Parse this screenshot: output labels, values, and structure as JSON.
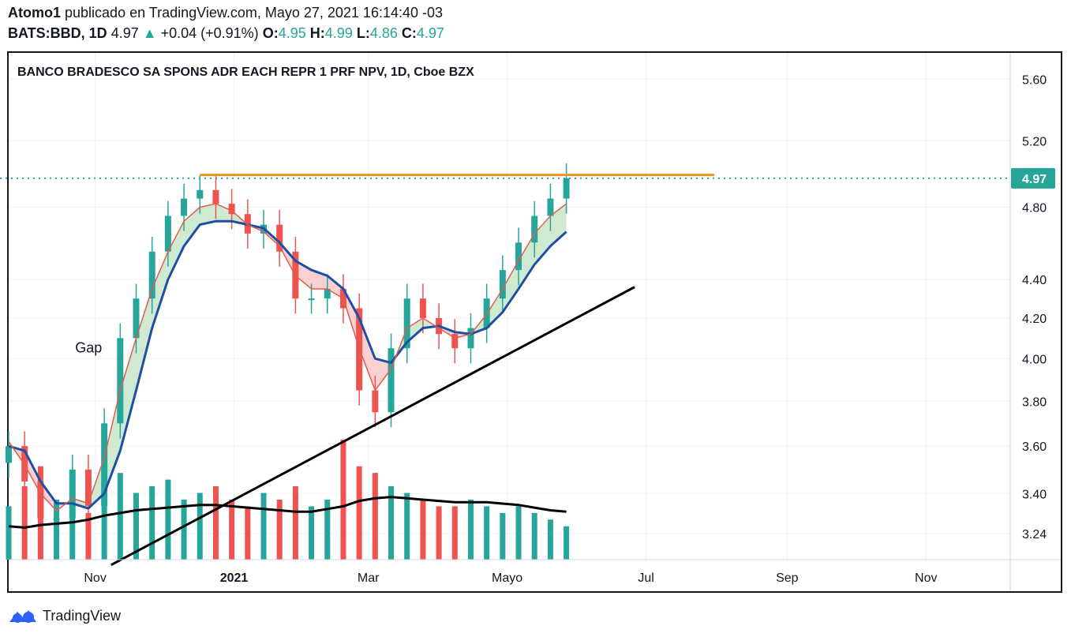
{
  "header": {
    "author": "Atomo1",
    "published_text": "publicado en TradingView.com, Mayo 27, 2021 16:14:40 -03",
    "symbol": "BATS:BBD, 1D",
    "price": "4.97",
    "change_icon": "triangle-up-icon",
    "change_arrow": "▲",
    "change": "+0.04 (+0.91%)",
    "o_label": "O:",
    "o_value": "4.95",
    "h_label": "H:",
    "h_value": "4.99",
    "l_label": "L:",
    "l_value": "4.86",
    "c_label": "C:",
    "c_value": "4.97"
  },
  "footer": {
    "brand": "TradingView",
    "logo_icon": "tradingview-logo-icon"
  },
  "colors": {
    "up": "#26a69a",
    "down": "#ef5350",
    "fast_ma": "#e35b4e",
    "slow_ma": "#1e4fa3",
    "resistance": "#f7931a",
    "trend": "#000000",
    "volume_ma": "#000000",
    "fill_up": "#c8e6c9",
    "fill_down": "#f8c9c9",
    "last_price_line": "#26a69a"
  },
  "chart_data": {
    "type": "candlestick",
    "title": "BANCO BRADESCO SA SPONS ADR EACH REPR 1 PRF NPV, 1D, Cboe BZX",
    "x_axis": {
      "type": "date",
      "range": [
        "2020-09-24",
        "2021-12-08"
      ],
      "ticks": [
        {
          "label": "Nov",
          "date": "2020-11-01",
          "bold": false
        },
        {
          "label": "2021",
          "date": "2021-01-01",
          "bold": true
        },
        {
          "label": "Mar",
          "date": "2021-03-01",
          "bold": false
        },
        {
          "label": "Mayo",
          "date": "2021-05-01",
          "bold": false
        },
        {
          "label": "Jul",
          "date": "2021-07-01",
          "bold": false
        },
        {
          "label": "Sep",
          "date": "2021-09-01",
          "bold": false
        },
        {
          "label": "Nov",
          "date": "2021-11-01",
          "bold": false
        }
      ]
    },
    "y_axis": {
      "scale": "log",
      "range": [
        3.14,
        5.78
      ],
      "ticks": [
        "5.60",
        "5.20",
        "4.80",
        "4.40",
        "4.20",
        "4.00",
        "3.80",
        "3.60",
        "3.40",
        "3.24"
      ]
    },
    "last_price": {
      "value": 4.97,
      "label": "4.97"
    },
    "grid": true,
    "series": [
      {
        "kind": "candles",
        "dates": [
          "2020-09-24",
          "2020-10-01",
          "2020-10-08",
          "2020-10-15",
          "2020-10-22",
          "2020-10-29",
          "2020-11-05",
          "2020-11-12",
          "2020-11-19",
          "2020-11-26",
          "2020-12-03",
          "2020-12-10",
          "2020-12-17",
          "2020-12-24",
          "2020-12-31",
          "2021-01-07",
          "2021-01-14",
          "2021-01-21",
          "2021-01-28",
          "2021-02-04",
          "2021-02-11",
          "2021-02-18",
          "2021-02-25",
          "2021-03-04",
          "2021-03-11",
          "2021-03-18",
          "2021-03-25",
          "2021-04-01",
          "2021-04-08",
          "2021-04-15",
          "2021-04-22",
          "2021-04-29",
          "2021-05-06",
          "2021-05-13",
          "2021-05-20",
          "2021-05-27"
        ],
        "close": [
          3.6,
          3.45,
          3.3,
          3.3,
          3.5,
          3.35,
          3.7,
          4.1,
          4.3,
          4.55,
          4.75,
          4.85,
          4.9,
          4.82,
          4.76,
          4.65,
          4.7,
          4.55,
          4.3,
          4.3,
          4.35,
          4.25,
          3.85,
          3.75,
          4.05,
          4.3,
          4.2,
          4.12,
          4.05,
          4.15,
          4.3,
          4.45,
          4.6,
          4.75,
          4.85,
          4.97
        ]
      },
      {
        "kind": "line",
        "label": "fast MA",
        "values": [
          3.62,
          3.52,
          3.4,
          3.33,
          3.38,
          3.36,
          3.55,
          3.85,
          4.1,
          4.35,
          4.55,
          4.72,
          4.8,
          4.82,
          4.78,
          4.7,
          4.66,
          4.58,
          4.42,
          4.35,
          4.35,
          4.3,
          4.05,
          3.85,
          3.95,
          4.15,
          4.2,
          4.15,
          4.1,
          4.12,
          4.22,
          4.35,
          4.5,
          4.65,
          4.75,
          4.82
        ]
      },
      {
        "kind": "line",
        "label": "slow MA",
        "values": [
          3.6,
          3.58,
          3.45,
          3.36,
          3.36,
          3.34,
          3.4,
          3.58,
          3.85,
          4.15,
          4.4,
          4.58,
          4.7,
          4.72,
          4.72,
          4.7,
          4.68,
          4.6,
          4.5,
          4.45,
          4.42,
          4.35,
          4.2,
          4.0,
          3.98,
          4.08,
          4.15,
          4.16,
          4.13,
          4.12,
          4.15,
          4.23,
          4.35,
          4.48,
          4.58,
          4.66
        ]
      },
      {
        "kind": "volume",
        "values": [
          40,
          55,
          70,
          45,
          60,
          35,
          80,
          65,
          50,
          55,
          60,
          45,
          50,
          55,
          45,
          40,
          50,
          45,
          55,
          40,
          45,
          90,
          70,
          65,
          55,
          50,
          45,
          40,
          40,
          45,
          40,
          35,
          40,
          35,
          30,
          25
        ]
      },
      {
        "kind": "line",
        "label": "volume MA",
        "values": [
          25,
          24,
          26,
          27,
          28,
          30,
          33,
          35,
          37,
          38,
          39,
          40,
          41,
          41,
          40,
          39,
          38,
          37,
          36,
          36,
          38,
          40,
          44,
          46,
          47,
          46,
          45,
          44,
          43,
          43,
          43,
          42,
          41,
          39,
          37,
          36
        ]
      }
    ],
    "resistance_line": {
      "value": 4.99,
      "from": "2020-12-17",
      "to": "2021-07-31"
    },
    "trend_line": {
      "from": {
        "date": "2020-11-08",
        "value": 3.12
      },
      "to": {
        "date": "2021-06-26",
        "value": 4.36
      }
    },
    "annotations": [
      {
        "text": "Gap",
        "date": "2020-11-04",
        "value": 4.03
      }
    ]
  }
}
